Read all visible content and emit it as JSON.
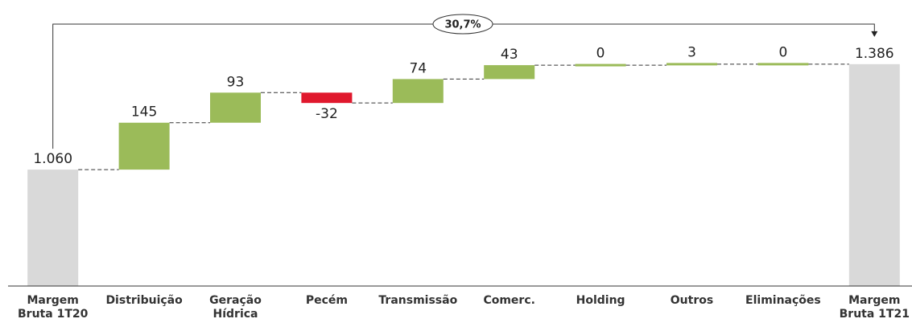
{
  "chart_data": {
    "type": "waterfall",
    "categories": [
      "Margem Bruta 1T20",
      "Distribuição",
      "Geração Hídrica",
      "Pecém",
      "Transmissão",
      "Comerc.",
      "Holding",
      "Outros",
      "Eliminações",
      "Margem Bruta 1T21"
    ],
    "values": [
      1060,
      145,
      93,
      -32,
      74,
      43,
      0,
      3,
      0,
      1386
    ],
    "value_labels": [
      "1.060",
      "145",
      "93",
      "-32",
      "74",
      "43",
      "0",
      "3",
      "0",
      "1.386"
    ],
    "total_indices": [
      0,
      9
    ],
    "colors": {
      "total": "#d9d9d9",
      "increase": "#9bbb59",
      "decrease": "#e0182d"
    },
    "ylim": [
      700,
      1500
    ],
    "annotation": "30,7%"
  }
}
